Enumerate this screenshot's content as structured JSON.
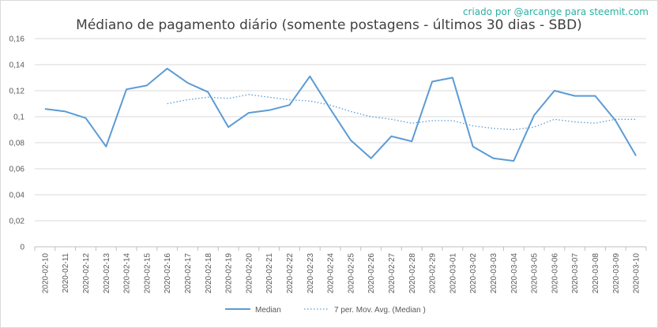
{
  "credit": "criado por @arcange para steemit.com",
  "chart_data": {
    "type": "line",
    "title": "Médiano de pagamento diário (somente postagens - últimos 30 dias - SBD)",
    "xlabel": "",
    "ylabel": "",
    "ylim": [
      0,
      0.16
    ],
    "yticks": [
      "0",
      "0,02",
      "0,04",
      "0,06",
      "0,08",
      "0,1",
      "0,12",
      "0,14",
      "0,16"
    ],
    "categories": [
      "2020-02-10",
      "2020-02-11",
      "2020-02-12",
      "2020-02-13",
      "2020-02-14",
      "2020-02-15",
      "2020-02-16",
      "2020-02-17",
      "2020-02-18",
      "2020-02-19",
      "2020-02-20",
      "2020-02-21",
      "2020-02-22",
      "2020-02-23",
      "2020-02-24",
      "2020-02-25",
      "2020-02-26",
      "2020-02-27",
      "2020-02-28",
      "2020-02-29",
      "2020-03-01",
      "2020-03-02",
      "2020-03-03",
      "2020-03-04",
      "2020-03-05",
      "2020-03-06",
      "2020-03-07",
      "2020-03-08",
      "2020-03-09",
      "2020-03-10"
    ],
    "grid": true,
    "legend_position": "bottom",
    "series": [
      {
        "name": "Median",
        "style": "solid",
        "color": "#5b9bd5",
        "values": [
          0.106,
          0.104,
          0.099,
          0.077,
          0.121,
          0.124,
          0.137,
          0.126,
          0.119,
          0.092,
          0.103,
          0.105,
          0.109,
          0.131,
          0.106,
          0.082,
          0.068,
          0.085,
          0.081,
          0.127,
          0.13,
          0.077,
          0.068,
          0.066,
          0.101,
          0.12,
          0.116,
          0.116,
          0.097,
          0.07
        ]
      },
      {
        "name": "7 per. Mov. Avg. (Median )",
        "style": "dotted",
        "color": "#5b9bd5",
        "values": [
          null,
          null,
          null,
          null,
          null,
          null,
          0.11,
          0.113,
          0.115,
          0.114,
          0.117,
          0.115,
          0.113,
          0.112,
          0.109,
          0.104,
          0.1,
          0.098,
          0.095,
          0.097,
          0.097,
          0.093,
          0.091,
          0.09,
          0.092,
          0.098,
          0.096,
          0.095,
          0.098,
          0.098
        ]
      }
    ]
  }
}
